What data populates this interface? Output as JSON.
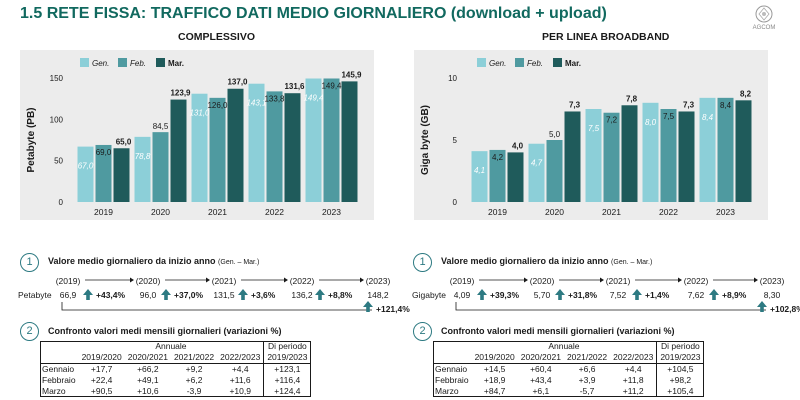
{
  "page": {
    "title": "1.5 RETE FISSA: TRAFFICO DATI MEDIO GIORNALIERO (download + upload)",
    "logo_text": "AGCOM"
  },
  "colors": {
    "gen": "#8ccfd8",
    "feb": "#4f9aa0",
    "mar": "#1f5b5b",
    "title": "#11695f",
    "accent": "#2d7a82",
    "plot_bg": "#ececec"
  },
  "icons": [
    "logo-emblem-icon",
    "arrow-up-icon"
  ],
  "chart_data": [
    {
      "type": "bar",
      "title": "COMPLESSIVO",
      "ylabel": "Petabyte (PB)",
      "xlabel": "",
      "categories": [
        "2019",
        "2020",
        "2021",
        "2022",
        "2023"
      ],
      "ylim": [
        0,
        150
      ],
      "yticks": [
        0,
        50,
        100,
        150
      ],
      "legend_position": "top",
      "series": [
        {
          "name": "Gen.",
          "values": [
            67.0,
            78.8,
            131.0,
            143.1,
            149.4
          ],
          "labels": [
            "67,0",
            "78,8",
            "131,0",
            "143,1",
            "149,4"
          ]
        },
        {
          "name": "Feb.",
          "values": [
            69.0,
            84.5,
            126.0,
            133.8,
            149.4
          ],
          "labels": [
            "69,0",
            "84,5",
            "126,0",
            "133,8",
            "149,4"
          ]
        },
        {
          "name": "Mar.",
          "values": [
            65.0,
            123.9,
            137.0,
            131.6,
            145.9
          ],
          "labels": [
            "65,0",
            "123,9",
            "137,0",
            "131,6",
            "145,9"
          ]
        }
      ]
    },
    {
      "type": "bar",
      "title": "PER LINEA BROADBAND",
      "ylabel": "Giga byte (GB)",
      "xlabel": "",
      "categories": [
        "2019",
        "2020",
        "2021",
        "2022",
        "2023"
      ],
      "ylim": [
        0,
        10
      ],
      "yticks": [
        0,
        5,
        10
      ],
      "legend_position": "top",
      "series": [
        {
          "name": "Gen.",
          "values": [
            4.1,
            4.7,
            7.5,
            8.0,
            8.4
          ],
          "labels": [
            "4,1",
            "4,7",
            "7,5",
            "8,0",
            "8,4"
          ]
        },
        {
          "name": "Feb.",
          "values": [
            4.2,
            5.0,
            7.2,
            7.5,
            8.4
          ],
          "labels": [
            "4,2",
            "5,0",
            "7,2",
            "7,5",
            "8,4"
          ]
        },
        {
          "name": "Mar.",
          "values": [
            4.0,
            7.3,
            7.8,
            7.3,
            8.2
          ],
          "labels": [
            "4,0",
            "7,3",
            "7,8",
            "7,3",
            "8,2"
          ]
        }
      ]
    }
  ],
  "growth": [
    {
      "num": "1",
      "title": "Valore medio giornaliero da inizio anno",
      "subtitle": "(Gen. – Mar.)",
      "unit": "Petabyte",
      "years": [
        "(2019)",
        "(2020)",
        "(2021)",
        "(2022)",
        "(2023)"
      ],
      "values": [
        "66,9",
        "96,0",
        "131,5",
        "136,2",
        "148,2"
      ],
      "changes": [
        "+43,4%",
        "+37,0%",
        "+3,6%",
        "+8,8%"
      ],
      "total_change": "+121,4%"
    },
    {
      "num": "1",
      "title": "Valore medio giornaliero da inizio anno",
      "subtitle": "(Gen. – Mar.)",
      "unit": "Gigabyte",
      "years": [
        "(2019)",
        "(2020)",
        "(2021)",
        "(2022)",
        "(2023)"
      ],
      "values": [
        "4,09",
        "5,70",
        "7,52",
        "7,62",
        "8,30"
      ],
      "changes": [
        "+39,3%",
        "+31,8%",
        "+1,4%",
        "+8,9%"
      ],
      "total_change": "+102,8%"
    }
  ],
  "tables": [
    {
      "num": "2",
      "title": "Confronto valori medi mensili giornalieri (variazioni %)",
      "group_header": "Annuale",
      "period_header": "Di periodo",
      "columns": [
        "2019/2020",
        "2020/2021",
        "2021/2022",
        "2022/2023",
        "2019/2023"
      ],
      "rows": [
        {
          "label": "Gennaio",
          "values": [
            "+17,7",
            "+66,2",
            "+9,2",
            "+4,4",
            "+123,1"
          ]
        },
        {
          "label": "Febbraio",
          "values": [
            "+22,4",
            "+49,1",
            "+6,2",
            "+11,6",
            "+116,4"
          ]
        },
        {
          "label": "Marzo",
          "values": [
            "+90,5",
            "+10,6",
            "-3,9",
            "+10,9",
            "+124,4"
          ]
        }
      ]
    },
    {
      "num": "2",
      "title": "Confronto valori medi mensili giornalieri (variazioni %)",
      "group_header": "Annuale",
      "period_header": "Di periodo",
      "columns": [
        "2019/2020",
        "2020/2021",
        "2021/2022",
        "2022/2023",
        "2019/2023"
      ],
      "rows": [
        {
          "label": "Gennaio",
          "values": [
            "+14,5",
            "+60,4",
            "+6,6",
            "+4,4",
            "+104,5"
          ]
        },
        {
          "label": "Febbraio",
          "values": [
            "+18,9",
            "+43,4",
            "+3,9",
            "+11,8",
            "+98,2"
          ]
        },
        {
          "label": "Marzo",
          "values": [
            "+84,7",
            "+6,1",
            "-5,7",
            "+11,2",
            "+105,4"
          ]
        }
      ]
    }
  ]
}
